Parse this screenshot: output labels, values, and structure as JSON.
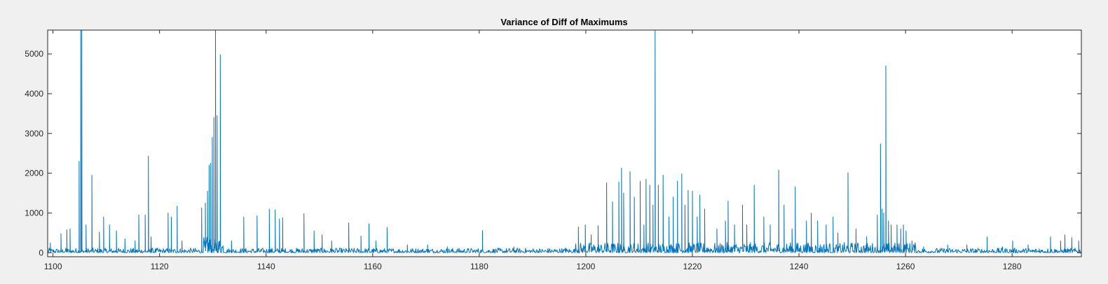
{
  "colors": {
    "background": "#f0f0f0",
    "axes_bg": "#ffffff",
    "line": "#0072bd",
    "axis": "#262626"
  },
  "chart_data": {
    "type": "line",
    "title": "Variance of Diff of Maximums",
    "xlabel": "",
    "ylabel": "",
    "xlim": [
      1099,
      1293
    ],
    "ylim": [
      -100,
      5600
    ],
    "xticks": [
      1100,
      1120,
      1140,
      1160,
      1180,
      1200,
      1220,
      1240,
      1260,
      1280
    ],
    "yticks": [
      0,
      1000,
      2000,
      3000,
      4000,
      5000
    ],
    "grid": false,
    "series": [
      {
        "name": "",
        "color": "#0072bd",
        "sampling_interval": 0.1,
        "baseline_noise_max": 120,
        "note_peaks": "x/y pairs of notable spikes read from the figure",
        "peaks": [
          [
            1099.5,
            250
          ],
          [
            1101.5,
            480
          ],
          [
            1102.6,
            580
          ],
          [
            1103.2,
            600
          ],
          [
            1104.9,
            2300
          ],
          [
            1105.2,
            5600
          ],
          [
            1105.4,
            5600
          ],
          [
            1106.2,
            700
          ],
          [
            1107.3,
            1950
          ],
          [
            1108.7,
            520
          ],
          [
            1109.5,
            900
          ],
          [
            1110.6,
            700
          ],
          [
            1111.9,
            550
          ],
          [
            1113.5,
            350
          ],
          [
            1115.4,
            300
          ],
          [
            1116.1,
            950
          ],
          [
            1117.3,
            950
          ],
          [
            1117.9,
            2430
          ],
          [
            1118.4,
            400
          ],
          [
            1121.6,
            1000
          ],
          [
            1122.2,
            900
          ],
          [
            1123.3,
            1170
          ],
          [
            1124.2,
            300
          ],
          [
            1127.9,
            1130
          ],
          [
            1128.6,
            1250
          ],
          [
            1129.0,
            1550
          ],
          [
            1129.3,
            2200
          ],
          [
            1129.6,
            2250
          ],
          [
            1129.9,
            2900
          ],
          [
            1130.2,
            3400
          ],
          [
            1130.5,
            5600
          ],
          [
            1130.8,
            3450
          ],
          [
            1131.4,
            4980
          ],
          [
            1133.5,
            300
          ],
          [
            1135.8,
            900
          ],
          [
            1138.3,
            930
          ],
          [
            1140.6,
            1100
          ],
          [
            1141.7,
            1080
          ],
          [
            1142.5,
            850
          ],
          [
            1143.1,
            880
          ],
          [
            1147.1,
            980
          ],
          [
            1149.0,
            550
          ],
          [
            1150.5,
            450
          ],
          [
            1152.3,
            300
          ],
          [
            1155.5,
            750
          ],
          [
            1157.8,
            420
          ],
          [
            1159.3,
            730
          ],
          [
            1160.6,
            300
          ],
          [
            1162.7,
            640
          ],
          [
            1166.5,
            200
          ],
          [
            1170.3,
            200
          ],
          [
            1174.0,
            150
          ],
          [
            1180.6,
            560
          ],
          [
            1186.5,
            150
          ],
          [
            1191.3,
            100
          ],
          [
            1196.2,
            120
          ],
          [
            1198.6,
            650
          ],
          [
            1199.9,
            700
          ],
          [
            1201.0,
            450
          ],
          [
            1202.3,
            680
          ],
          [
            1203.9,
            1760
          ],
          [
            1205.0,
            1280
          ],
          [
            1206.2,
            1780
          ],
          [
            1206.7,
            2130
          ],
          [
            1207.1,
            1500
          ],
          [
            1208.3,
            2040
          ],
          [
            1209.1,
            1400
          ],
          [
            1210.2,
            1800
          ],
          [
            1210.9,
            700
          ],
          [
            1211.3,
            1850
          ],
          [
            1212.0,
            1700
          ],
          [
            1212.6,
            1200
          ],
          [
            1213.0,
            5600
          ],
          [
            1213.6,
            1700
          ],
          [
            1214.5,
            1950
          ],
          [
            1215.6,
            900
          ],
          [
            1216.4,
            1400
          ],
          [
            1217.2,
            1800
          ],
          [
            1218.0,
            1980
          ],
          [
            1218.6,
            1200
          ],
          [
            1219.2,
            1570
          ],
          [
            1220.0,
            1550
          ],
          [
            1220.9,
            900
          ],
          [
            1221.4,
            1450
          ],
          [
            1222.3,
            1100
          ],
          [
            1224.6,
            600
          ],
          [
            1226.2,
            800
          ],
          [
            1226.7,
            1300
          ],
          [
            1227.9,
            700
          ],
          [
            1229.4,
            1200
          ],
          [
            1230.2,
            700
          ],
          [
            1231.6,
            1700
          ],
          [
            1233.4,
            900
          ],
          [
            1234.6,
            700
          ],
          [
            1236.2,
            2080
          ],
          [
            1237.2,
            1200
          ],
          [
            1238.7,
            600
          ],
          [
            1239.3,
            1660
          ],
          [
            1241.4,
            800
          ],
          [
            1242.3,
            1000
          ],
          [
            1243.5,
            800
          ],
          [
            1245.1,
            700
          ],
          [
            1246.4,
            900
          ],
          [
            1247.3,
            500
          ],
          [
            1249.2,
            2010
          ],
          [
            1250.7,
            600
          ],
          [
            1252.7,
            400
          ],
          [
            1254.7,
            950
          ],
          [
            1255.3,
            2740
          ],
          [
            1255.6,
            1100
          ],
          [
            1255.9,
            1000
          ],
          [
            1256.3,
            4700
          ],
          [
            1256.8,
            800
          ],
          [
            1257.3,
            700
          ],
          [
            1258.4,
            700
          ],
          [
            1259.1,
            600
          ],
          [
            1259.6,
            700
          ],
          [
            1260.1,
            550
          ],
          [
            1261.2,
            300
          ],
          [
            1263.4,
            150
          ],
          [
            1267.9,
            200
          ],
          [
            1271.5,
            200
          ],
          [
            1275.3,
            400
          ],
          [
            1278.2,
            150
          ],
          [
            1280.1,
            300
          ],
          [
            1283.0,
            200
          ],
          [
            1285.1,
            100
          ],
          [
            1287.2,
            400
          ],
          [
            1289.1,
            300
          ],
          [
            1289.9,
            450
          ],
          [
            1291.2,
            380
          ],
          [
            1292.5,
            300
          ]
        ]
      }
    ]
  }
}
